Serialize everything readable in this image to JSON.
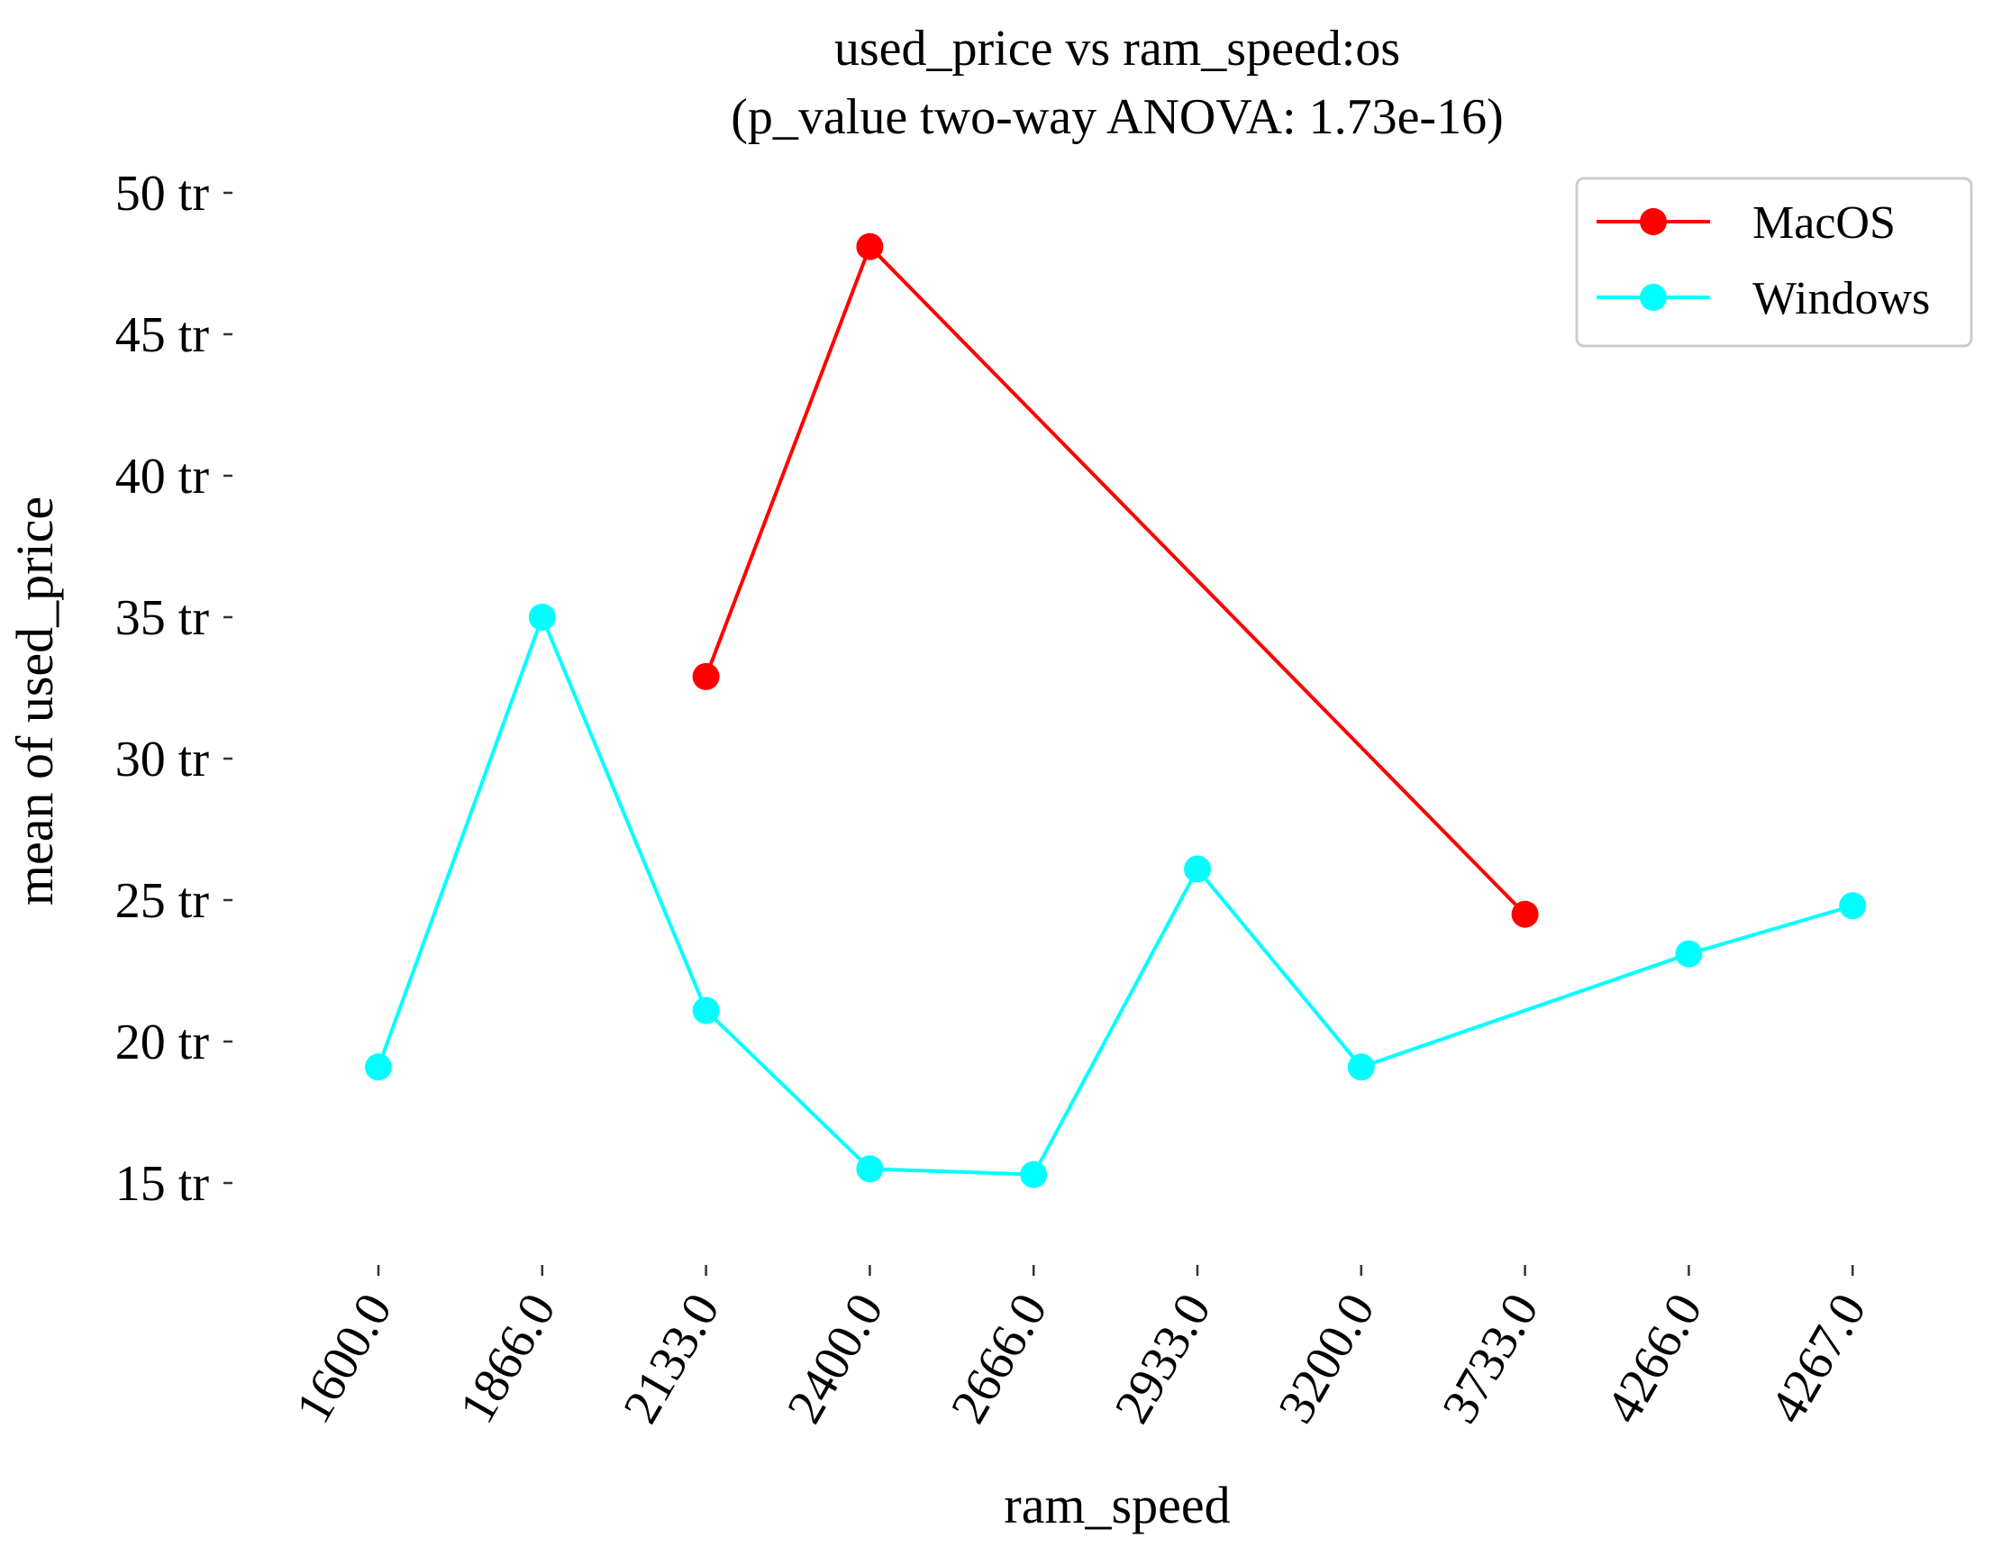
{
  "chart_data": {
    "type": "line",
    "title": "used_price vs ram_speed:os",
    "subtitle": "(p_value two-way ANOVA: 1.73e-16)",
    "xlabel": "ram_speed",
    "ylabel": "mean of used_price",
    "categories": [
      "1600.0",
      "1866.0",
      "2133.0",
      "2400.0",
      "2666.0",
      "2933.0",
      "3200.0",
      "3733.0",
      "4266.0",
      "4267.0"
    ],
    "yticks": [
      {
        "value": 15,
        "label": "15 tr"
      },
      {
        "value": 20,
        "label": "20 tr"
      },
      {
        "value": 25,
        "label": "25 tr"
      },
      {
        "value": 30,
        "label": "30 tr"
      },
      {
        "value": 35,
        "label": "35 tr"
      },
      {
        "value": 40,
        "label": "40 tr"
      },
      {
        "value": 45,
        "label": "45 tr"
      },
      {
        "value": 50,
        "label": "50 tr"
      }
    ],
    "ylim": [
      12.0,
      50.5
    ],
    "grid": false,
    "legend_position": "top-right",
    "series": [
      {
        "name": "MacOS",
        "color": "#ff0000",
        "values": [
          null,
          null,
          32.9,
          48.1,
          null,
          null,
          null,
          24.5,
          null,
          null
        ]
      },
      {
        "name": "Windows",
        "color": "#00ffff",
        "values": [
          19.1,
          35.0,
          21.1,
          15.5,
          15.3,
          26.1,
          19.1,
          null,
          23.1,
          24.8
        ]
      }
    ]
  }
}
